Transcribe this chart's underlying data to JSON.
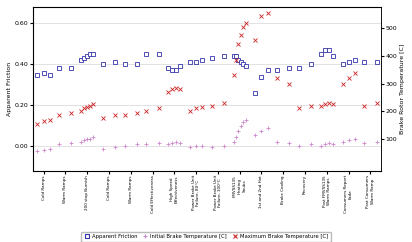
{
  "ylabel_left": "Apparent Friction",
  "ylabel_right": "Brake Rotor Temperature [C]",
  "ylim_left": [
    -0.12,
    0.68
  ],
  "ylim_right": [
    -16,
    578
  ],
  "yticks_left": [
    0.0,
    0.2,
    0.4,
    0.6
  ],
  "ytick_labels_left": [
    "0.00",
    "0.20",
    "0.40",
    "0.60"
  ],
  "yticks_right": [
    100,
    200,
    300,
    400,
    500
  ],
  "categories": [
    "Cold Ramps",
    "Warm Ramps",
    "200 stop Burnish",
    "Cold Ramps",
    "Warm Ramps",
    "Cold Effectiveness",
    "High Speed\nEffectiveness",
    "Power Brake Unit\nFailure, 80°C",
    "Power Brake Unit\nFailure, 100°C",
    "FMVSS135\nHeating\nSnubs",
    "1st and 2nd Hot",
    "Brake Cooling",
    "Recovery",
    "Post FMVSS135\nWarm Ramps",
    "Consumers Report\nFade",
    "Post Consumers\nWarm Ramp"
  ],
  "apparent_friction": [
    [
      0.35,
      0.36,
      0.35
    ],
    [
      0.38,
      0.38
    ],
    [
      0.42,
      0.43,
      0.44,
      0.45,
      0.45
    ],
    [
      0.4,
      0.41
    ],
    [
      0.4,
      0.4
    ],
    [
      0.45,
      0.45
    ],
    [
      0.38,
      0.37,
      0.37,
      0.39
    ],
    [
      0.41,
      0.41,
      0.42
    ],
    [
      0.43,
      0.44
    ],
    [
      0.44,
      0.44,
      0.42,
      0.41,
      0.4,
      0.39
    ],
    [
      0.26,
      0.34,
      0.37
    ],
    [
      0.37,
      0.38
    ],
    [
      0.38,
      0.4
    ],
    [
      0.45,
      0.47,
      0.47,
      0.44
    ],
    [
      0.4,
      0.41,
      0.42
    ],
    [
      0.41,
      0.41
    ]
  ],
  "initial_temp": [
    [
      55,
      60,
      65
    ],
    [
      80,
      85
    ],
    [
      90,
      95,
      100,
      100,
      105
    ],
    [
      65,
      70
    ],
    [
      75,
      80
    ],
    [
      80,
      85
    ],
    [
      80,
      85,
      88,
      85
    ],
    [
      70,
      75,
      75
    ],
    [
      70,
      75
    ],
    [
      90,
      105,
      130,
      145,
      160,
      170
    ],
    [
      115,
      130,
      140
    ],
    [
      90,
      85
    ],
    [
      75,
      80
    ],
    [
      75,
      80,
      85,
      80
    ],
    [
      90,
      95,
      100
    ],
    [
      85,
      90
    ]
  ],
  "max_temp": [
    [
      155,
      165,
      170
    ],
    [
      185,
      195
    ],
    [
      200,
      210,
      215,
      220,
      225
    ],
    [
      175,
      185
    ],
    [
      185,
      195
    ],
    [
      200,
      210
    ],
    [
      270,
      280,
      285,
      280
    ],
    [
      200,
      210,
      215
    ],
    [
      220,
      230
    ],
    [
      330,
      385,
      445,
      475,
      505,
      520
    ],
    [
      460,
      545,
      555
    ],
    [
      320,
      300
    ],
    [
      210,
      220
    ],
    [
      220,
      225,
      230,
      225
    ],
    [
      300,
      320,
      340
    ],
    [
      220,
      230
    ]
  ],
  "af_color": "#3333aa",
  "init_temp_color": "#cc88cc",
  "max_temp_color": "#cc2222",
  "background_color": "#ffffff",
  "grid_color": "#cccccc"
}
